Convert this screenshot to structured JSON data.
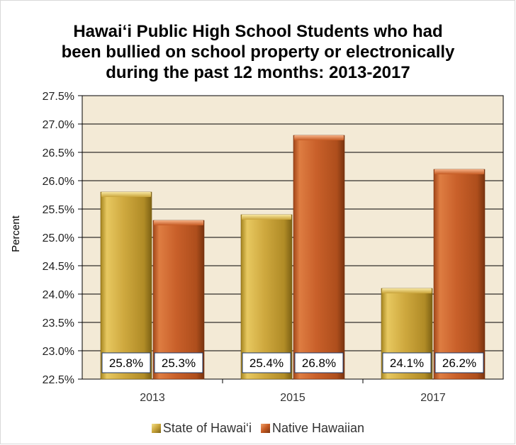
{
  "chart_data": {
    "type": "bar",
    "title_lines": [
      "Hawai‘i Public High School Students who had",
      "been bullied on school property or electronically",
      "during the past 12 months: 2013-2017"
    ],
    "ylabel": "Percent",
    "xlabel": "",
    "categories": [
      "2013",
      "2015",
      "2017"
    ],
    "ylim": [
      22.5,
      27.5
    ],
    "yticks": [
      "22.5%",
      "23.0%",
      "23.5%",
      "24.0%",
      "24.5%",
      "25.0%",
      "25.5%",
      "26.0%",
      "26.5%",
      "27.0%",
      "27.5%"
    ],
    "ytick_values": [
      22.5,
      23.0,
      23.5,
      24.0,
      24.5,
      25.0,
      25.5,
      26.0,
      26.5,
      27.0,
      27.5
    ],
    "grid": true,
    "legend_position": "bottom",
    "series": [
      {
        "name": "State of Hawai‘i",
        "values": [
          25.8,
          25.4,
          24.1
        ],
        "labels": [
          "25.8%",
          "25.4%",
          "24.1%"
        ],
        "color": "#c9a43a"
      },
      {
        "name": "Native Hawaiian",
        "values": [
          25.3,
          26.8,
          26.2
        ],
        "labels": [
          "25.3%",
          "26.8%",
          "26.2%"
        ],
        "color": "#c55a22"
      }
    ],
    "plot_background": "#f3ead6"
  }
}
